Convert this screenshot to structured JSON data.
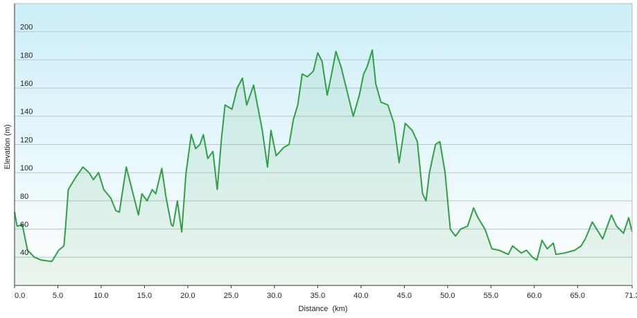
{
  "chart_data": {
    "type": "line",
    "x_label": "Distance  (km)",
    "y_label": "Elevation (m)",
    "color": "#2ea043",
    "fill": true,
    "grid": true,
    "xlim": [
      0,
      71.3
    ],
    "ylim": [
      20,
      220
    ],
    "xticks": [
      {
        "value": 0,
        "label": "0.0"
      },
      {
        "value": 5,
        "label": "5.0"
      },
      {
        "value": 10,
        "label": "10.0"
      },
      {
        "value": 15,
        "label": "15.0"
      },
      {
        "value": 20,
        "label": "20.0"
      },
      {
        "value": 25,
        "label": "25.0"
      },
      {
        "value": 30,
        "label": "30.0"
      },
      {
        "value": 35,
        "label": "35.0"
      },
      {
        "value": 40,
        "label": "40.0"
      },
      {
        "value": 45,
        "label": "45.0"
      },
      {
        "value": 50,
        "label": "50.0"
      },
      {
        "value": 55,
        "label": "55.0"
      },
      {
        "value": 60,
        "label": "60.0"
      },
      {
        "value": 65,
        "label": "65.0"
      },
      71.3
    ],
    "yticks": [
      40,
      60,
      80,
      100,
      120,
      140,
      160,
      180,
      200
    ],
    "x": [
      0,
      0.3,
      0.9,
      1.5,
      2.3,
      3.1,
      4.3,
      5.1,
      5.7,
      5.9,
      6.2,
      6.7,
      7.1,
      7.9,
      8.6,
      9.1,
      9.7,
      10.3,
      11.1,
      11.7,
      12.1,
      12.9,
      14.3,
      14.7,
      15.3,
      15.9,
      16.3,
      17.0,
      17.5,
      18.1,
      18.3,
      18.8,
      19.3,
      19.8,
      20.4,
      20.9,
      21.4,
      21.8,
      22.3,
      22.9,
      23.4,
      23.9,
      24.3,
      25.1,
      25.7,
      26.3,
      26.8,
      27.6,
      28.6,
      29.2,
      29.6,
      30.2,
      31.1,
      31.7,
      32.2,
      32.7,
      33.2,
      33.8,
      34.5,
      35.0,
      35.5,
      36.1,
      36.6,
      37.1,
      37.7,
      38.3,
      39.1,
      39.8,
      40.3,
      40.7,
      41.3,
      41.7,
      42.3,
      43.1,
      43.8,
      44.4,
      45.1,
      45.9,
      46.5,
      47.1,
      47.5,
      47.9,
      48.6,
      49.1,
      49.7,
      50.3,
      50.9,
      51.5,
      52.3,
      53.0,
      53.5,
      54.3,
      55.1,
      55.9,
      57.0,
      57.5,
      58.5,
      59.1,
      59.8,
      60.3,
      60.9,
      61.5,
      62.2,
      62.5,
      63.5,
      64.7,
      65.4,
      65.9,
      66.7,
      67.9,
      68.9,
      69.5,
      70.3,
      70.9,
      71.3
    ],
    "values": [
      72,
      62,
      63,
      45,
      40,
      38,
      37,
      45,
      48,
      62,
      88,
      93,
      97,
      104,
      100,
      95,
      100,
      88,
      82,
      73,
      72,
      104,
      70,
      85,
      80,
      88,
      85,
      103,
      82,
      63,
      62,
      80,
      58,
      100,
      127,
      117,
      120,
      127,
      110,
      115,
      88,
      125,
      148,
      145,
      160,
      167,
      148,
      162,
      130,
      104,
      130,
      112,
      118,
      120,
      138,
      148,
      170,
      168,
      172,
      185,
      179,
      155,
      170,
      186,
      175,
      160,
      140,
      155,
      170,
      175,
      187,
      163,
      150,
      148,
      135,
      107,
      135,
      130,
      122,
      85,
      80,
      100,
      120,
      122,
      100,
      60,
      55,
      60,
      62,
      75,
      68,
      60,
      46,
      45,
      42,
      48,
      43,
      45,
      40,
      38,
      52,
      46,
      50,
      42,
      43,
      45,
      48,
      53,
      65,
      53,
      70,
      62,
      57,
      68,
      58
    ]
  }
}
